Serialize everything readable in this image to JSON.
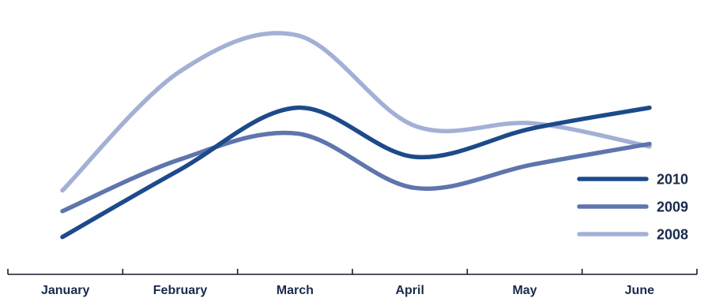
{
  "chart_data": {
    "type": "line",
    "categories": [
      "January",
      "February",
      "March",
      "April",
      "May",
      "June"
    ],
    "series": [
      {
        "name": "2010",
        "color": "#1d4a8a",
        "values": [
          12,
          38,
          62,
          43,
          54,
          62
        ]
      },
      {
        "name": "2009",
        "color": "#5e75ad",
        "values": [
          22,
          42,
          52,
          31,
          40,
          48
        ]
      },
      {
        "name": "2008",
        "color": "#a3b0d6",
        "values": [
          30,
          76,
          90,
          55,
          56,
          47
        ]
      }
    ],
    "ylim": [
      0,
      100
    ],
    "legend": "right",
    "grid": false
  }
}
